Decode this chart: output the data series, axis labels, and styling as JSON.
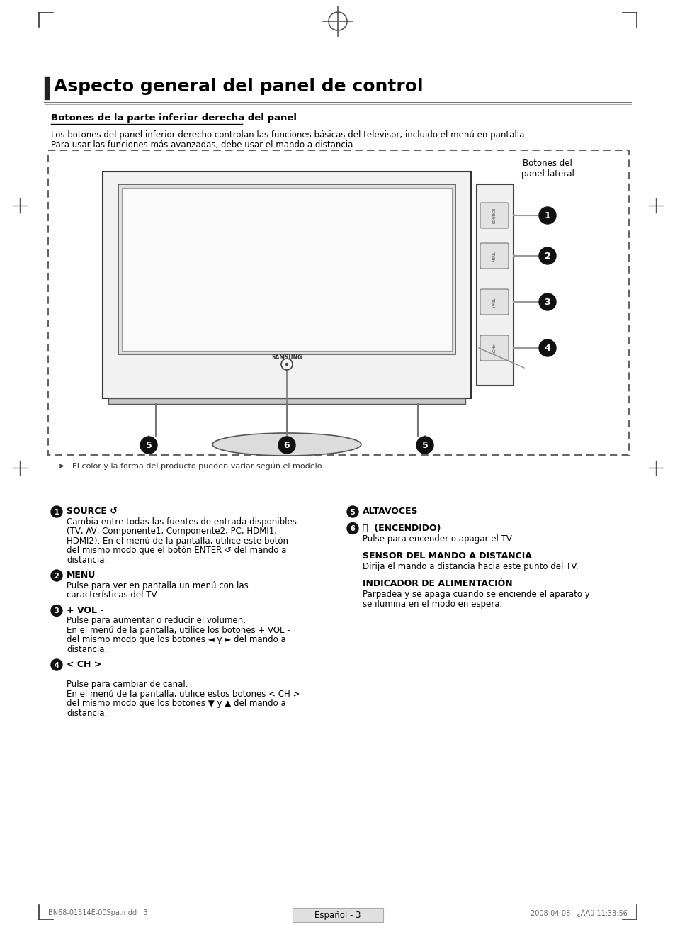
{
  "title": "Aspecto general del panel de control",
  "subtitle": "Botones de la parte inferior derecha del panel",
  "intro_line1": "Los botones del panel inferior derecho controlan las funciones básicas del televisor, incluido el menú en pantalla.",
  "intro_line2": "Para usar las funciones más avanzadas, debe usar el mando a distancia.",
  "panel_label": "Botones del\npanel lateral",
  "note": "➤   El color y la forma del producto pueden variar según el modelo.",
  "footer_left": "BN68-01514E-00Spa.indd   3",
  "footer_right": "2008-04-08   ¿ÀÃü 11:33:56",
  "footer_center": "Español - 3",
  "bg_color": "#ffffff",
  "text_color": "#000000"
}
